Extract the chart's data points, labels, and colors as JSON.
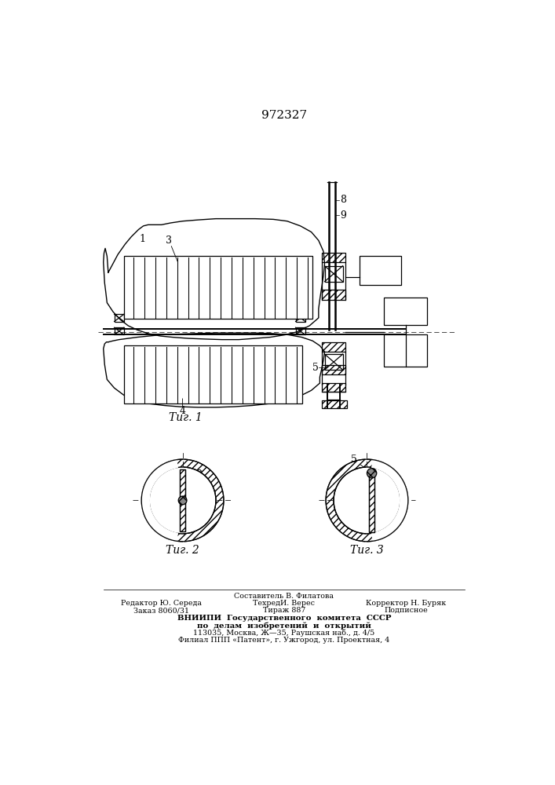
{
  "title": "972327",
  "fig1_label": "Τиг. 1",
  "fig2_label": "Τиг. 2",
  "fig3_label": "Τиг. 3",
  "footer_line1": "Составитель В. Филатова",
  "footer_line2l": "Редактор Ю. Середа",
  "footer_line2m": "ТехредИ. Верес",
  "footer_line2r": "Корректор Н. Буряк",
  "footer_line3l": "Заказ 8060/31",
  "footer_line3m": "Тираж 887",
  "footer_line3r": "Подписное",
  "footer_line4": "ВНИИПИ  Государственного  комитета  СССР",
  "footer_line5": "по  делам  изобретений  и  открытий",
  "footer_line6": "113035, Москва, Ж—35, Раушская наб., д. 4/5",
  "footer_line7": "Филиал ППП «Патент», г. Ужгород, ул. Проектная, 4",
  "bg_color": "#ffffff",
  "line_color": "#000000"
}
